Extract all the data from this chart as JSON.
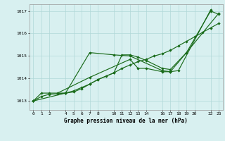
{
  "background_color": "#d8f0f0",
  "line_color": "#1a6b1a",
  "grid_color": "#b0d8d8",
  "title": "Graphe pression niveau de la mer (hPa)",
  "xlim": [
    -0.5,
    23.5
  ],
  "ylim": [
    1012.6,
    1017.3
  ],
  "yticks": [
    1013,
    1014,
    1015,
    1016,
    1017
  ],
  "xticks": [
    0,
    1,
    2,
    4,
    5,
    6,
    7,
    8,
    10,
    11,
    12,
    13,
    14,
    16,
    17,
    18,
    19,
    20,
    22,
    23
  ],
  "series": [
    {
      "x": [
        0,
        1,
        2,
        4,
        5,
        6,
        7,
        8,
        10,
        11,
        12,
        13,
        14,
        16,
        17,
        19,
        22,
        23
      ],
      "y": [
        1013.0,
        1013.35,
        1013.35,
        1013.35,
        1013.45,
        1013.6,
        1013.75,
        1013.95,
        1014.25,
        1015.05,
        1015.05,
        1014.95,
        1014.8,
        1014.45,
        1014.4,
        1015.15,
        1017.0,
        1016.85
      ]
    },
    {
      "x": [
        0,
        1,
        2,
        3,
        4,
        5,
        6,
        7,
        8,
        9,
        10,
        11,
        12,
        13,
        14,
        15,
        16,
        17,
        18,
        19,
        20,
        21,
        22,
        23
      ],
      "y": [
        1013.0,
        1013.2,
        1013.3,
        1013.32,
        1013.35,
        1013.4,
        1013.55,
        1013.75,
        1013.95,
        1014.1,
        1014.25,
        1014.45,
        1014.6,
        1014.75,
        1014.85,
        1015.0,
        1015.1,
        1015.25,
        1015.45,
        1015.65,
        1015.85,
        1016.05,
        1016.25,
        1016.45
      ]
    },
    {
      "x": [
        0,
        4,
        7,
        10,
        12,
        16,
        17,
        18,
        22
      ],
      "y": [
        1013.0,
        1013.35,
        1015.15,
        1015.05,
        1015.0,
        1014.35,
        1014.3,
        1014.35,
        1017.05
      ]
    },
    {
      "x": [
        3,
        7,
        12,
        13,
        14,
        16,
        17,
        19,
        23
      ],
      "y": [
        1013.35,
        1014.05,
        1014.85,
        1014.45,
        1014.45,
        1014.3,
        1014.3,
        1015.15,
        1016.9
      ]
    }
  ]
}
